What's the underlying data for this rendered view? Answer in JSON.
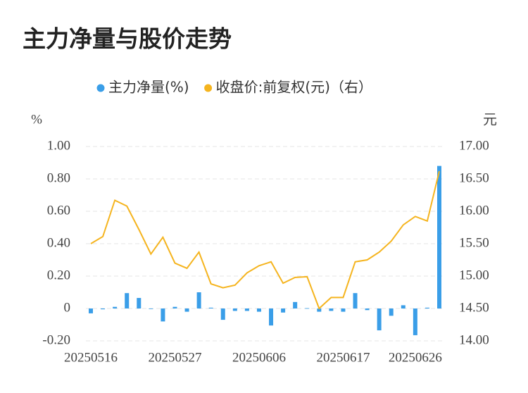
{
  "chart_data": {
    "type": "bar-line",
    "title": "主力净量与股价走势",
    "y_label": "%",
    "y2_label": "元",
    "categories": [
      "20250516",
      null,
      null,
      null,
      null,
      null,
      null,
      "20250527",
      null,
      null,
      null,
      null,
      null,
      null,
      "20250606",
      null,
      null,
      null,
      null,
      null,
      null,
      "20250617",
      null,
      null,
      null,
      null,
      null,
      "20250626",
      null,
      null
    ],
    "series": [
      {
        "name": "主力净量(%)",
        "type": "bar",
        "color": "#3a9ee8",
        "values": [
          -0.03,
          -0.005,
          0.01,
          0.095,
          0.065,
          -0.003,
          -0.08,
          0.01,
          -0.02,
          0.1,
          0.005,
          -0.07,
          -0.015,
          -0.015,
          -0.02,
          -0.105,
          -0.025,
          0.04,
          0.002,
          -0.02,
          -0.015,
          -0.02,
          0.095,
          -0.01,
          -0.135,
          -0.045,
          0.02,
          -0.165,
          0.005,
          0.88
        ]
      },
      {
        "name": "收盘价:前复权(元)（右）",
        "type": "line",
        "axis": "y2",
        "color": "#f5b41e",
        "values": [
          15.5,
          15.61,
          16.17,
          16.08,
          15.72,
          15.34,
          15.6,
          15.2,
          15.12,
          15.37,
          14.88,
          14.82,
          14.86,
          15.05,
          15.16,
          15.22,
          14.89,
          14.98,
          14.99,
          14.5,
          14.67,
          14.67,
          15.22,
          15.25,
          15.37,
          15.54,
          15.79,
          15.92,
          15.85,
          16.62
        ]
      }
    ],
    "ylim": [
      -0.2,
      1.0
    ],
    "yticks": [
      {
        "value": -0.2,
        "label": "-0.20"
      },
      0,
      {
        "value": 0.2,
        "label": "0.20"
      },
      {
        "value": 0.4,
        "label": "0.40"
      },
      {
        "value": 0.6,
        "label": "0.60"
      },
      {
        "value": 0.8,
        "label": "0.80"
      },
      {
        "value": 1.0,
        "label": "1.00"
      }
    ],
    "y2lim": [
      14,
      17
    ],
    "y2ticks": [
      {
        "value": 14,
        "label": "14.00"
      },
      {
        "value": 14.5,
        "label": "14.50"
      },
      {
        "value": 15,
        "label": "15.00"
      },
      {
        "value": 15.5,
        "label": "15.50"
      },
      {
        "value": 16,
        "label": "16.00"
      },
      {
        "value": 16.5,
        "label": "16.50"
      },
      {
        "value": 17,
        "label": "17.00"
      }
    ],
    "grid": true
  }
}
